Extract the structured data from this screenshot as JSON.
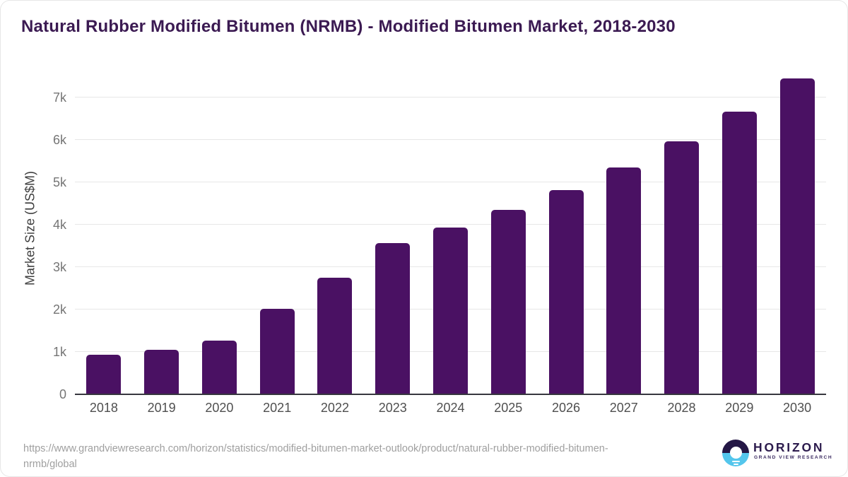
{
  "title": "Natural Rubber Modified Bitumen (NRMB) - Modified Bitumen Market, 2018-2030",
  "chart_data": {
    "type": "bar",
    "categories": [
      "2018",
      "2019",
      "2020",
      "2021",
      "2022",
      "2023",
      "2024",
      "2025",
      "2026",
      "2027",
      "2028",
      "2029",
      "2030"
    ],
    "values": [
      920,
      1030,
      1250,
      2000,
      2740,
      3555,
      3910,
      4340,
      4795,
      5335,
      5950,
      6655,
      7440
    ],
    "title": "Natural Rubber Modified Bitumen (NRMB) - Modified Bitumen Market, 2018-2030",
    "xlabel": "",
    "ylabel": "Market Size (US$M)",
    "ylim": [
      0,
      7500
    ],
    "ytick_step": 1000,
    "ytick_labels": [
      "0",
      "1k",
      "2k",
      "3k",
      "4k",
      "5k",
      "6k",
      "7k"
    ],
    "grid": "horizontal",
    "legend": "none",
    "bar_color": "#4a1163"
  },
  "footer": {
    "source_url_lines": [
      "https://www.grandviewresearch.com/horizon/statistics/modified-bitumen-market-outlook/product/natural-rubber-modified-bitumen-",
      "nrmb/global"
    ],
    "logo": {
      "brand": "HORIZON",
      "subbrand": "GRAND VIEW RESEARCH"
    }
  },
  "colors": {
    "bar": "#4a1163",
    "title_text": "#3b1a52",
    "axis_line": "#37373f",
    "gridline": "#e7e7e7",
    "y_tick_text": "#757575",
    "x_tick_text": "#4f4f4f",
    "source_text": "#9f9f9f",
    "logo_purple": "#241745",
    "logo_blue": "#54c6ec"
  }
}
